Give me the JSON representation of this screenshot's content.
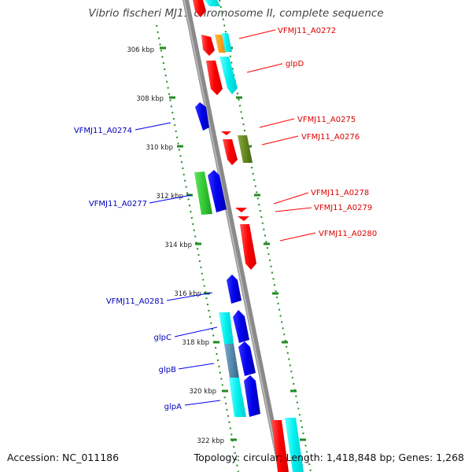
{
  "title": "Vibrio fischeri MJ11 chromosome II, complete sequence",
  "footer": {
    "accession": "Accession: NC_011186",
    "topology": "Topology: circular; Length: 1,418,848 bp; Genes: 1,268"
  },
  "ticks": [
    "306 kbp",
    "308 kbp",
    "310 kbp",
    "312 kbp",
    "314 kbp",
    "316 kbp",
    "318 kbp",
    "320 kbp",
    "322 kbp"
  ],
  "gene_labels": {
    "VFMJ11_A0272": "VFMJ11_A0272",
    "glpD": "glpD",
    "VFMJ11_A0275": "VFMJ11_A0275",
    "VFMJ11_A0276": "VFMJ11_A0276",
    "VFMJ11_A0278": "VFMJ11_A0278",
    "VFMJ11_A0279": "VFMJ11_A0279",
    "VFMJ11_A0280": "VFMJ11_A0280",
    "VFMJ11_A0274": "VFMJ11_A0274",
    "VFMJ11_A0277": "VFMJ11_A0277",
    "VFMJ11_A0281": "VFMJ11_A0281",
    "glpC": "glpC",
    "glpB": "glpB",
    "glpA": "glpA"
  },
  "colors": {
    "forward_gene": "#ff0000",
    "reverse_gene": "#0000ee",
    "cds_cyan": "#00e5ee",
    "green_gene": "#33cc33",
    "olive_gene": "#668822",
    "orange_gene": "#ff9900",
    "steel_gene": "#5588aa",
    "backbone": "#888888",
    "tick": "#228b22",
    "forward_label": "#dd0000",
    "reverse_label": "#0000bb"
  }
}
